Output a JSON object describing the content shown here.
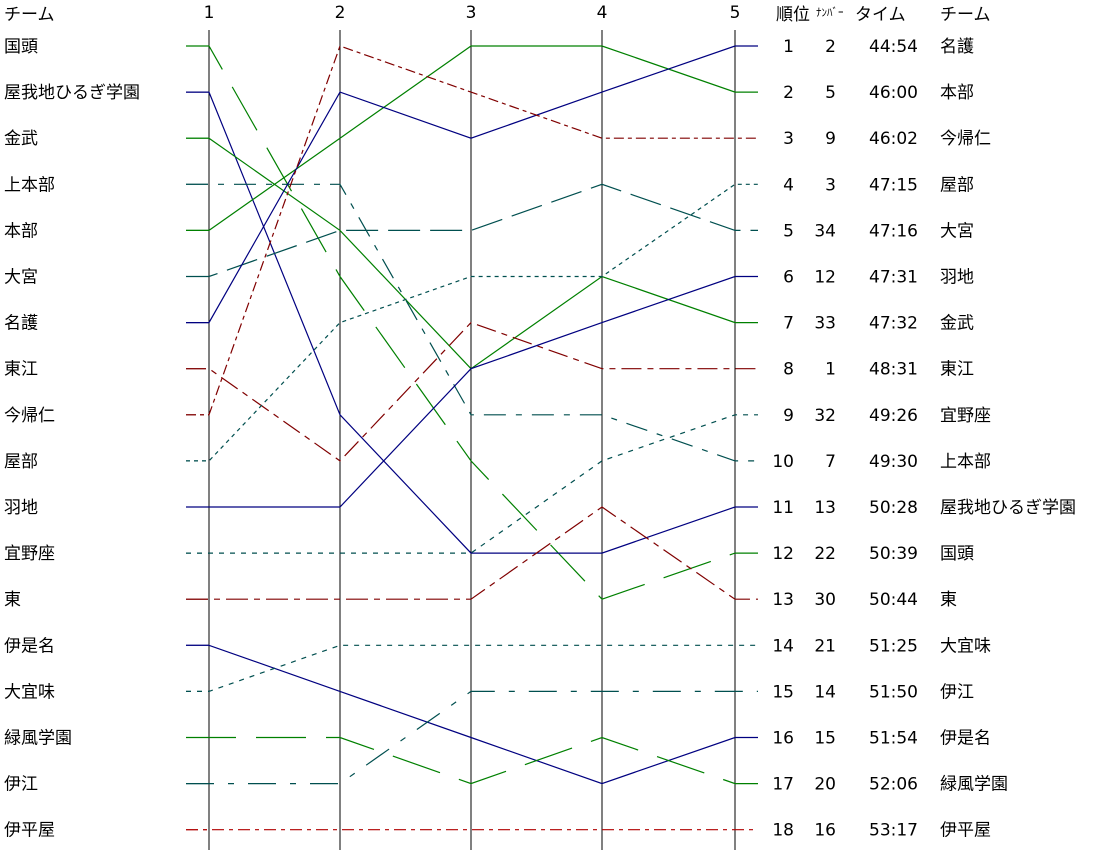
{
  "chart_data": {
    "type": "line",
    "x": [
      "1",
      "2",
      "3",
      "4",
      "5"
    ],
    "ylim": [
      1,
      18
    ],
    "y_reversed": true,
    "header": {
      "team_left": "チーム",
      "rank": "順位",
      "number": "ﾅﾝﾊﾞｰ",
      "time": "タイム",
      "team_right": "チーム"
    },
    "series": [
      {
        "name": "国頭",
        "values": [
          1,
          6,
          10,
          13,
          12
        ],
        "color": "#008000",
        "dash": "50 20"
      },
      {
        "name": "屋我地ひるぎ学園",
        "values": [
          2,
          9,
          12,
          12,
          11
        ],
        "color": "#000080",
        "dash": ""
      },
      {
        "name": "金武",
        "values": [
          3,
          5,
          8,
          6,
          7
        ],
        "color": "#008000",
        "dash": ""
      },
      {
        "name": "上本部",
        "values": [
          4,
          4,
          9,
          9,
          10
        ],
        "color": "#004f4f",
        "dash": "22 10 6 10"
      },
      {
        "name": "本部",
        "values": [
          5,
          3,
          1,
          1,
          2
        ],
        "color": "#008000",
        "dash": ""
      },
      {
        "name": "大宮",
        "values": [
          6,
          5,
          5,
          4,
          5
        ],
        "color": "#004f4f",
        "dash": "32 10"
      },
      {
        "name": "名護",
        "values": [
          7,
          2,
          3,
          2,
          1
        ],
        "color": "#000080",
        "dash": ""
      },
      {
        "name": "東江",
        "values": [
          8,
          10,
          7,
          8,
          8
        ],
        "color": "#800000",
        "dash": "20 6 6 6"
      },
      {
        "name": "今帰仁",
        "values": [
          9,
          1,
          2,
          3,
          3
        ],
        "color": "#800000",
        "dash": "10 4 4 4"
      },
      {
        "name": "屋部",
        "values": [
          10,
          7,
          6,
          6,
          4
        ],
        "color": "#004f4f",
        "dash": "4 4"
      },
      {
        "name": "羽地",
        "values": [
          11,
          11,
          8,
          7,
          6
        ],
        "color": "#000080",
        "dash": ""
      },
      {
        "name": "宜野座",
        "values": [
          12,
          12,
          12,
          10,
          9
        ],
        "color": "#004f4f",
        "dash": "5 6"
      },
      {
        "name": "東",
        "values": [
          13,
          13,
          13,
          11,
          13
        ],
        "color": "#800000",
        "dash": "22 6 6 6"
      },
      {
        "name": "伊是名",
        "values": [
          14,
          15,
          16,
          17,
          16
        ],
        "color": "#000080",
        "dash": ""
      },
      {
        "name": "大宜味",
        "values": [
          15,
          14,
          14,
          14,
          14
        ],
        "color": "#004f4f",
        "dash": "5 6"
      },
      {
        "name": "緑風学園",
        "values": [
          16,
          16,
          17,
          16,
          17
        ],
        "color": "#008000",
        "dash": "50 20"
      },
      {
        "name": "伊江",
        "values": [
          17,
          17,
          15,
          15,
          15
        ],
        "color": "#004f4f",
        "dash": "28 14 6 14"
      },
      {
        "name": "伊平屋",
        "values": [
          18,
          18,
          18,
          18,
          18
        ],
        "color": "#b00000",
        "dash": "12 5 4 5"
      }
    ],
    "final_results": [
      {
        "rank": "1",
        "number": "2",
        "time": "44:54",
        "team": "名護"
      },
      {
        "rank": "2",
        "number": "5",
        "time": "46:00",
        "team": "本部"
      },
      {
        "rank": "3",
        "number": "9",
        "time": "46:02",
        "team": "今帰仁"
      },
      {
        "rank": "4",
        "number": "3",
        "time": "47:15",
        "team": "屋部"
      },
      {
        "rank": "5",
        "number": "34",
        "time": "47:16",
        "team": "大宮"
      },
      {
        "rank": "6",
        "number": "12",
        "time": "47:31",
        "team": "羽地"
      },
      {
        "rank": "7",
        "number": "33",
        "time": "47:32",
        "team": "金武"
      },
      {
        "rank": "8",
        "number": "1",
        "time": "48:31",
        "team": "東江"
      },
      {
        "rank": "9",
        "number": "32",
        "time": "49:26",
        "team": "宜野座"
      },
      {
        "rank": "10",
        "number": "7",
        "time": "49:30",
        "team": "上本部"
      },
      {
        "rank": "11",
        "number": "13",
        "time": "50:28",
        "team": "屋我地ひるぎ学園"
      },
      {
        "rank": "12",
        "number": "22",
        "time": "50:39",
        "team": "国頭"
      },
      {
        "rank": "13",
        "number": "30",
        "time": "50:44",
        "team": "東"
      },
      {
        "rank": "14",
        "number": "21",
        "time": "51:25",
        "team": "大宜味"
      },
      {
        "rank": "15",
        "number": "14",
        "time": "51:50",
        "team": "伊江"
      },
      {
        "rank": "16",
        "number": "15",
        "time": "51:54",
        "team": "伊是名"
      },
      {
        "rank": "17",
        "number": "20",
        "time": "52:06",
        "team": "緑風学園"
      },
      {
        "rank": "18",
        "number": "16",
        "time": "53:17",
        "team": "伊平屋"
      }
    ]
  }
}
